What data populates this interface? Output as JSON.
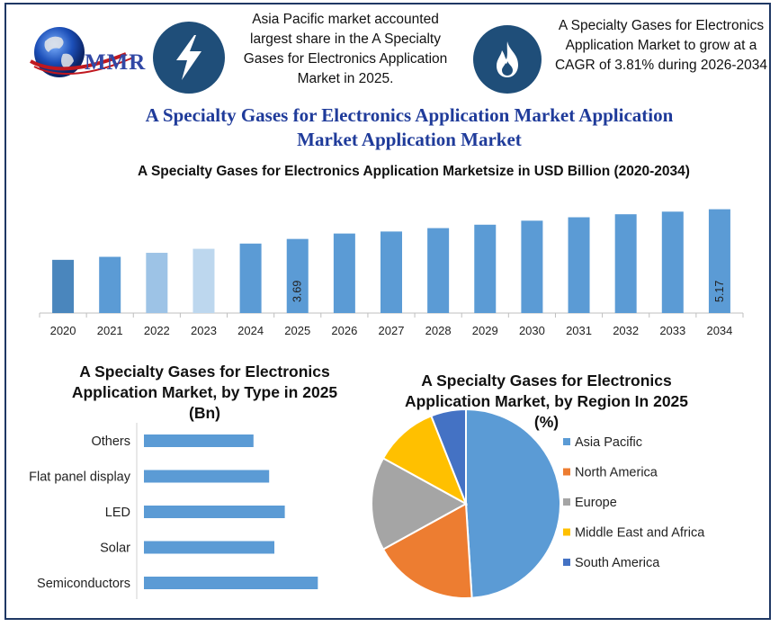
{
  "header": {
    "logo_text": "MMR",
    "left_note": "Asia Pacific market accounted largest share in the A Specialty Gases for Electronics Application Market in 2025.",
    "right_note": "A Specialty Gases for Electronics Application Market to grow at a CAGR of 3.81% during 2026-2034",
    "left_icon": "lightning-bolt-icon",
    "right_icon": "flame-icon"
  },
  "main_title": "A Specialty Gases for Electronics Application Market Application Market Application Market",
  "colors": {
    "frame": "#1f3864",
    "title": "#1f3b9a",
    "icon_bg": "#1f4e79",
    "bar_main": "#5b9bd5",
    "bar_dark": "#4a86bd",
    "bar_light": "#9dc3e6",
    "bar_lighter": "#bdd7ee",
    "pie": [
      "#5b9bd5",
      "#ed7d31",
      "#a5a5a5",
      "#ffc000",
      "#4472c4"
    ]
  },
  "chart_data": [
    {
      "type": "bar",
      "title": "A Specialty Gases for Electronics Application Marketsize in USD Billion (2020-2034)",
      "categories": [
        "2020",
        "2021",
        "2022",
        "2023",
        "2024",
        "2025",
        "2026",
        "2027",
        "2028",
        "2029",
        "2030",
        "2031",
        "2032",
        "2033",
        "2034"
      ],
      "values": [
        2.65,
        2.8,
        3.0,
        3.2,
        3.46,
        3.69,
        3.96,
        4.06,
        4.23,
        4.4,
        4.6,
        4.77,
        4.92,
        5.05,
        5.17
      ],
      "data_labels": {
        "2025": "3.69",
        "2034": "5.17"
      },
      "bar_colors": [
        "#4a86bd",
        "#5b9bd5",
        "#9dc3e6",
        "#bdd7ee",
        "#5b9bd5",
        "#5b9bd5",
        "#5b9bd5",
        "#5b9bd5",
        "#5b9bd5",
        "#5b9bd5",
        "#5b9bd5",
        "#5b9bd5",
        "#5b9bd5",
        "#5b9bd5",
        "#5b9bd5"
      ],
      "ylim": [
        0,
        5.6
      ],
      "grid": false
    },
    {
      "type": "bar",
      "orientation": "horizontal",
      "title": "A Specialty Gases for Electronics Application Market, by Type in 2025 (Bn)",
      "categories": [
        "Others",
        "Flat panel display",
        "LED",
        "Solar",
        "Semiconductors"
      ],
      "values": [
        0.63,
        0.72,
        0.81,
        0.75,
        1.0
      ],
      "xlim": [
        0,
        1.2
      ],
      "grid": false
    },
    {
      "type": "pie",
      "title": "A Specialty Gases for Electronics Application Market, by Region In 2025 (%)",
      "labels": [
        "Asia Pacific",
        "North America",
        "Europe",
        "Middle East and Africa",
        "South America"
      ],
      "values": [
        49,
        18,
        16,
        11,
        6
      ],
      "legend": "right"
    }
  ]
}
